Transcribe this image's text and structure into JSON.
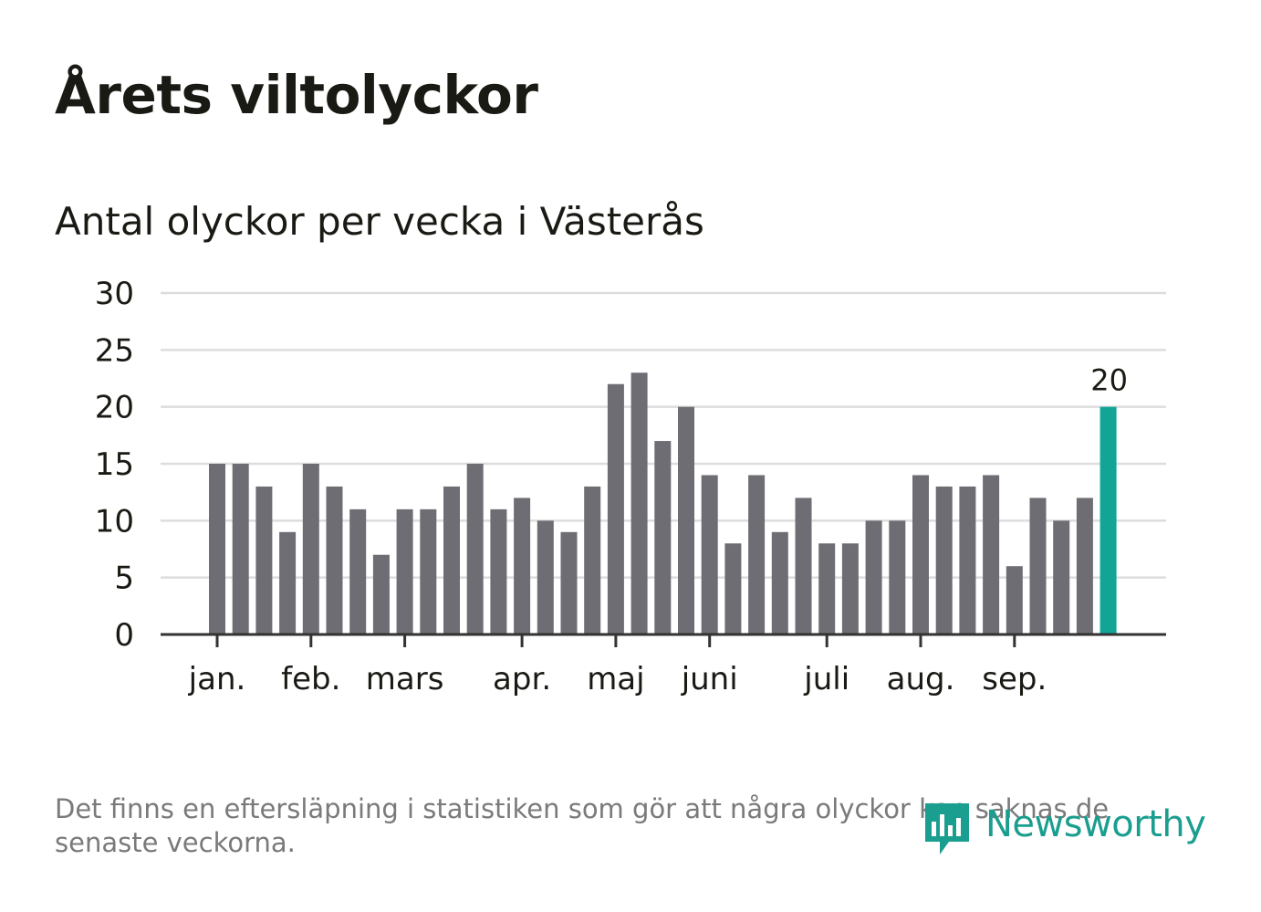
{
  "title": "Årets viltolyckor",
  "subtitle": "Antal olyckor per vecka i Västerås",
  "footnote": "Det finns en eftersläpning i statistiken som gör att några olyckor kan saknas de senaste veckorna.",
  "logo": {
    "text": "Newsworthy",
    "icon": "newsworthy-logo-icon"
  },
  "colors": {
    "bar": "#6e6d73",
    "highlight": "#12a596",
    "grid": "#dddddd",
    "axis": "#333333",
    "text": "#1a1a14"
  },
  "chart_data": {
    "type": "bar",
    "title": "Antal olyckor per vecka i Västerås",
    "xlabel": "",
    "ylabel": "",
    "ylim": [
      0,
      30
    ],
    "yticks": [
      0,
      5,
      10,
      15,
      20,
      25,
      30
    ],
    "grid": true,
    "values": [
      15,
      15,
      13,
      9,
      15,
      13,
      11,
      7,
      11,
      11,
      13,
      15,
      11,
      12,
      10,
      9,
      13,
      22,
      23,
      17,
      20,
      14,
      8,
      14,
      9,
      12,
      8,
      8,
      10,
      10,
      14,
      13,
      13,
      14,
      6,
      12,
      10,
      12,
      20
    ],
    "highlight_index": 38,
    "data_labels": [
      {
        "index": 38,
        "text": "20"
      }
    ],
    "months": [
      {
        "label": "jan.",
        "bar_index": 0
      },
      {
        "label": "feb.",
        "bar_index": 4
      },
      {
        "label": "mars",
        "bar_index": 8
      },
      {
        "label": "apr.",
        "bar_index": 13
      },
      {
        "label": "maj",
        "bar_index": 17
      },
      {
        "label": "juni",
        "bar_index": 21
      },
      {
        "label": "juli",
        "bar_index": 26
      },
      {
        "label": "aug.",
        "bar_index": 30
      },
      {
        "label": "sep.",
        "bar_index": 34
      }
    ]
  }
}
